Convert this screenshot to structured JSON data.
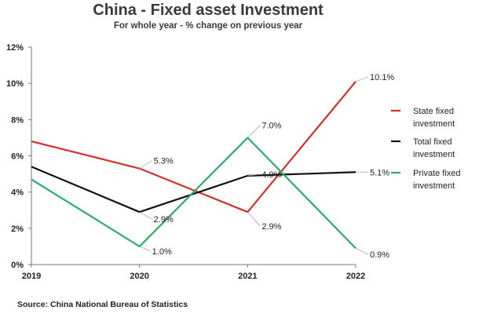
{
  "chart_data": {
    "type": "line",
    "title": "China - Fixed asset Investment",
    "subtitle": "For whole year - % change on previous year",
    "source": "Source: China National Bureau of Statistics",
    "x": [
      "2019",
      "2020",
      "2021",
      "2022"
    ],
    "ylim": [
      0,
      12
    ],
    "yticks": [
      "0%",
      "2%",
      "4%",
      "6%",
      "8%",
      "10%",
      "12%"
    ],
    "grid": false,
    "legend_position": "right",
    "series": [
      {
        "name_lines": [
          "State fixed",
          "investment"
        ],
        "color": "#d0312d",
        "values": [
          6.8,
          5.3,
          2.9,
          10.1
        ],
        "labels": [
          "",
          "5.3%",
          "2.9%",
          "10.1%"
        ]
      },
      {
        "name_lines": [
          "Total fixed",
          "investment"
        ],
        "color": "#111111",
        "values": [
          5.4,
          2.9,
          4.9,
          5.1
        ],
        "labels": [
          "",
          "2.9%",
          "4.9%",
          "5.1%"
        ]
      },
      {
        "name_lines": [
          "Private fixed",
          "investment"
        ],
        "color": "#2eaa6a",
        "values": [
          4.7,
          1.0,
          7.0,
          0.9
        ],
        "labels": [
          "",
          "1.0%",
          "7.0%",
          "0.9%"
        ]
      }
    ]
  }
}
